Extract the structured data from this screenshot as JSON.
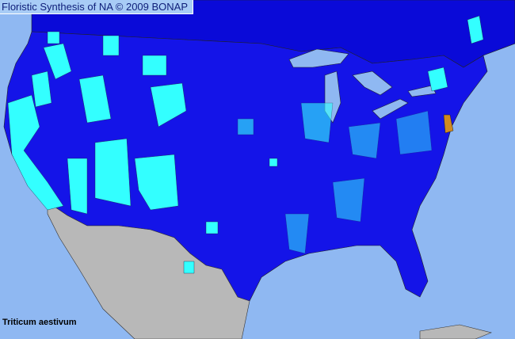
{
  "header": {
    "title": "Floristic Synthesis of NA © 2009 BONAP"
  },
  "species": {
    "name": "Triticum aestivum"
  },
  "colors": {
    "ocean": "#8fb8f2",
    "region_base": "#1414e8",
    "canada": "#0a0ad8",
    "present_county": "#33ffff",
    "noxious_state": "#d08a20",
    "mexico": "#b8b8b8",
    "lakes": "#8fb8f2"
  }
}
